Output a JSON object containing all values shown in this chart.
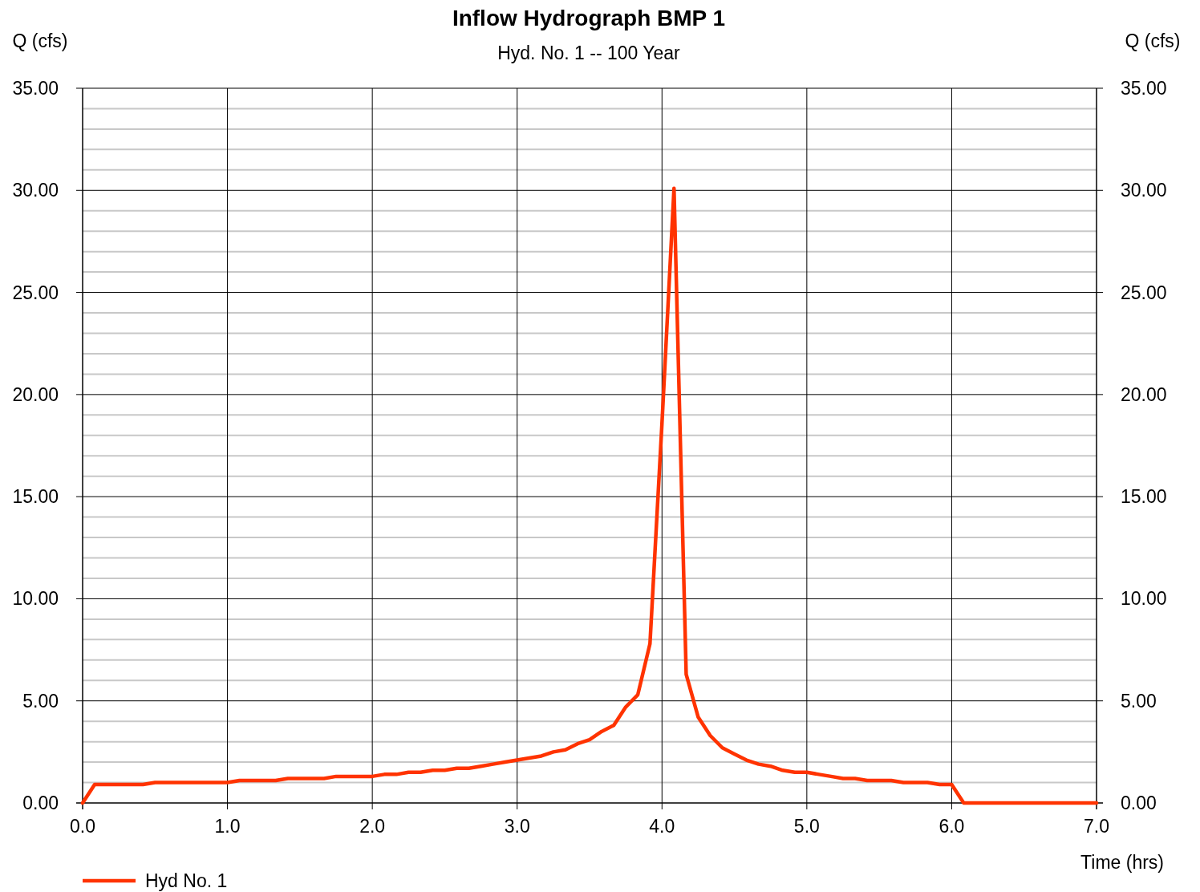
{
  "chart_data": {
    "type": "line",
    "title": "Inflow Hydrograph BMP 1",
    "subtitle": "Hyd. No. 1 -- 100 Year",
    "xlabel": "Time (hrs)",
    "ylabel": "Q (cfs)",
    "y2label": "Q (cfs)",
    "x": [
      0,
      0.083,
      0.167,
      0.25,
      0.333,
      0.417,
      0.5,
      0.583,
      0.667,
      0.75,
      0.833,
      0.917,
      1,
      1.083,
      1.167,
      1.25,
      1.333,
      1.417,
      1.5,
      1.583,
      1.667,
      1.75,
      1.833,
      1.917,
      2,
      2.083,
      2.167,
      2.25,
      2.333,
      2.417,
      2.5,
      2.583,
      2.667,
      2.75,
      2.833,
      2.917,
      3,
      3.083,
      3.167,
      3.25,
      3.333,
      3.417,
      3.5,
      3.583,
      3.667,
      3.75,
      3.833,
      3.917,
      4,
      4.083,
      4.167,
      4.25,
      4.333,
      4.417,
      4.5,
      4.583,
      4.667,
      4.75,
      4.833,
      4.917,
      5,
      5.083,
      5.167,
      5.25,
      5.333,
      5.417,
      5.5,
      5.583,
      5.667,
      5.75,
      5.833,
      5.917,
      6,
      6.083,
      6.167,
      6.25,
      6.333,
      6.417,
      6.5,
      6.583,
      6.667,
      6.75,
      6.833,
      6.917,
      7
    ],
    "series": [
      {
        "name": "Hyd No. 1",
        "color": "#ff3300",
        "values": [
          0,
          0.9,
          0.9,
          0.9,
          0.9,
          0.9,
          1.0,
          1.0,
          1.0,
          1.0,
          1.0,
          1.0,
          1.0,
          1.1,
          1.1,
          1.1,
          1.1,
          1.2,
          1.2,
          1.2,
          1.2,
          1.3,
          1.3,
          1.3,
          1.3,
          1.4,
          1.4,
          1.5,
          1.5,
          1.6,
          1.6,
          1.7,
          1.7,
          1.8,
          1.9,
          2.0,
          2.1,
          2.2,
          2.3,
          2.5,
          2.6,
          2.9,
          3.1,
          3.5,
          3.8,
          4.7,
          5.3,
          7.8,
          18.6,
          30.1,
          6.3,
          4.2,
          3.3,
          2.7,
          2.4,
          2.1,
          1.9,
          1.8,
          1.6,
          1.5,
          1.5,
          1.4,
          1.3,
          1.2,
          1.2,
          1.1,
          1.1,
          1.1,
          1.0,
          1.0,
          1.0,
          0.9,
          0.9,
          0,
          0,
          0,
          0,
          0,
          0,
          0,
          0,
          0,
          0,
          0,
          0
        ]
      }
    ],
    "xlim": [
      0,
      7
    ],
    "xticks": [
      {
        "value": 0,
        "label": "0.0"
      },
      {
        "value": 1,
        "label": "1.0"
      },
      {
        "value": 2,
        "label": "2.0"
      },
      {
        "value": 3,
        "label": "3.0"
      },
      {
        "value": 4,
        "label": "4.0"
      },
      {
        "value": 5,
        "label": "5.0"
      },
      {
        "value": 6,
        "label": "6.0"
      },
      {
        "value": 7,
        "label": "7.0"
      }
    ],
    "ylim": [
      0,
      35
    ],
    "yticks": [
      {
        "value": 0,
        "label": "0.00"
      },
      {
        "value": 1,
        "label": null
      },
      {
        "value": 2,
        "label": null
      },
      {
        "value": 3,
        "label": null
      },
      {
        "value": 4,
        "label": null
      },
      {
        "value": 5,
        "label": "5.00"
      },
      {
        "value": 6,
        "label": null
      },
      {
        "value": 7,
        "label": null
      },
      {
        "value": 8,
        "label": null
      },
      {
        "value": 9,
        "label": null
      },
      {
        "value": 10,
        "label": "10.00"
      },
      {
        "value": 11,
        "label": null
      },
      {
        "value": 12,
        "label": null
      },
      {
        "value": 13,
        "label": null
      },
      {
        "value": 14,
        "label": null
      },
      {
        "value": 15,
        "label": "15.00"
      },
      {
        "value": 16,
        "label": null
      },
      {
        "value": 17,
        "label": null
      },
      {
        "value": 18,
        "label": null
      },
      {
        "value": 19,
        "label": null
      },
      {
        "value": 20,
        "label": "20.00"
      },
      {
        "value": 21,
        "label": null
      },
      {
        "value": 22,
        "label": null
      },
      {
        "value": 23,
        "label": null
      },
      {
        "value": 24,
        "label": null
      },
      {
        "value": 25,
        "label": "25.00"
      },
      {
        "value": 26,
        "label": null
      },
      {
        "value": 27,
        "label": null
      },
      {
        "value": 28,
        "label": null
      },
      {
        "value": 29,
        "label": null
      },
      {
        "value": 30,
        "label": "30.00"
      },
      {
        "value": 31,
        "label": null
      },
      {
        "value": 32,
        "label": null
      },
      {
        "value": 33,
        "label": null
      },
      {
        "value": 34,
        "label": null
      },
      {
        "value": 35,
        "label": "35.00"
      }
    ],
    "y2lim": [
      0,
      35
    ],
    "y2ticks": [
      {
        "value": 0,
        "label": "0.00"
      },
      {
        "value": 5,
        "label": "5.00"
      },
      {
        "value": 10,
        "label": "10.00"
      },
      {
        "value": 15,
        "label": "15.00"
      },
      {
        "value": 20,
        "label": "20.00"
      },
      {
        "value": 25,
        "label": "25.00"
      },
      {
        "value": 30,
        "label": "30.00"
      },
      {
        "value": 35,
        "label": "35.00"
      }
    ],
    "grid": true,
    "legend": "bottom left",
    "marker": "none",
    "line_style": "solid"
  }
}
